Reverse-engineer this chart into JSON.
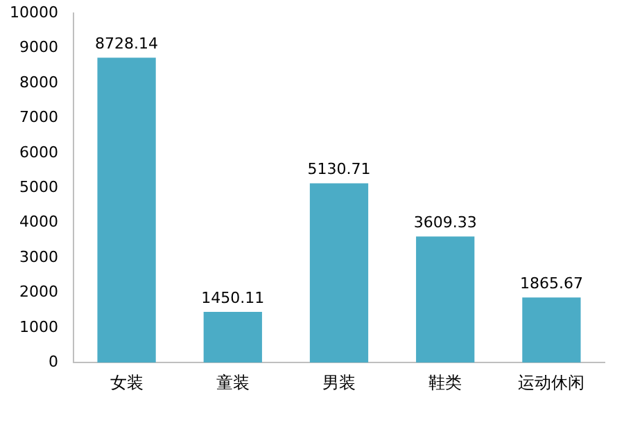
{
  "chart_data": {
    "type": "bar",
    "categories": [
      "女装",
      "童装",
      "男装",
      "鞋类",
      "运动休闲"
    ],
    "values": [
      8728.14,
      1450.11,
      5130.71,
      3609.33,
      1865.67
    ],
    "color": "#4bacc6",
    "ylim": [
      0,
      10000
    ],
    "yticks": [
      0,
      1000,
      2000,
      3000,
      4000,
      5000,
      6000,
      7000,
      8000,
      9000,
      10000
    ],
    "grid": false,
    "data_labels": true
  }
}
